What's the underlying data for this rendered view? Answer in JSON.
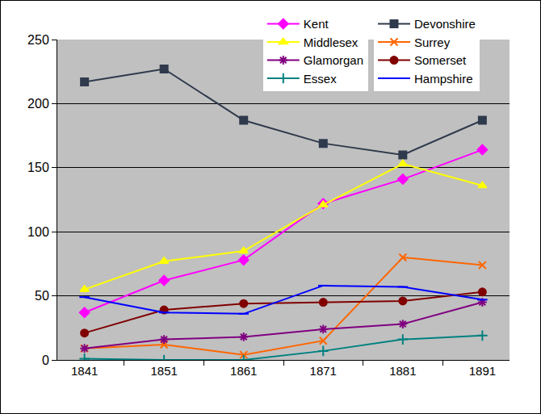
{
  "chart_data": {
    "type": "line",
    "categories": [
      "1841",
      "1851",
      "1861",
      "1871",
      "1881",
      "1891"
    ],
    "ylim": [
      0,
      250
    ],
    "yticks": [
      0,
      50,
      100,
      150,
      200,
      250
    ],
    "grid": true,
    "legend": "top right",
    "series": [
      {
        "name": "Kent",
        "color": "#ff00ff",
        "marker": "diamond",
        "values": [
          37,
          62,
          78,
          122,
          141,
          164
        ]
      },
      {
        "name": "Devonshire",
        "color": "#2f3a4c",
        "marker": "square",
        "values": [
          217,
          227,
          187,
          169,
          160,
          187
        ]
      },
      {
        "name": "Middlesex",
        "color": "#ffff00",
        "marker": "triangle-up",
        "values": [
          55,
          77,
          85,
          121,
          153,
          136
        ]
      },
      {
        "name": "Surrey",
        "color": "#ff6600",
        "marker": "x",
        "values": [
          9,
          12,
          4,
          15,
          80,
          74
        ]
      },
      {
        "name": "Glamorgan",
        "color": "#800080",
        "marker": "asterisk",
        "values": [
          9,
          16,
          18,
          24,
          28,
          45
        ]
      },
      {
        "name": "Somerset",
        "color": "#800000",
        "marker": "circle",
        "values": [
          21,
          39,
          44,
          45,
          46,
          53
        ]
      },
      {
        "name": "Essex",
        "color": "#008080",
        "marker": "cross",
        "values": [
          1,
          0,
          0,
          7,
          16,
          19
        ]
      },
      {
        "name": "Hampshire",
        "color": "#0000ff",
        "marker": "line-ew",
        "values": [
          49,
          37,
          36,
          58,
          57,
          47
        ]
      }
    ]
  }
}
